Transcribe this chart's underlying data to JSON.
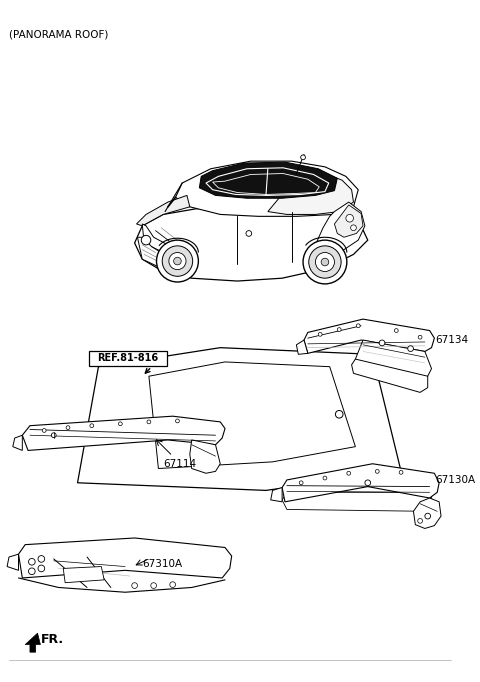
{
  "title": "(PANORAMA ROOF)",
  "bg": "#ffffff",
  "lc": "#000000",
  "gray": "#888888",
  "lgray": "#bbbbbb",
  "labels": {
    "ref": "REF.81-816",
    "p67134": "67134",
    "p67114": "67114",
    "p67130A": "67130A",
    "p67310A": "67310A",
    "fr": "FR."
  },
  "fig_width": 4.8,
  "fig_height": 6.82,
  "dpi": 100
}
